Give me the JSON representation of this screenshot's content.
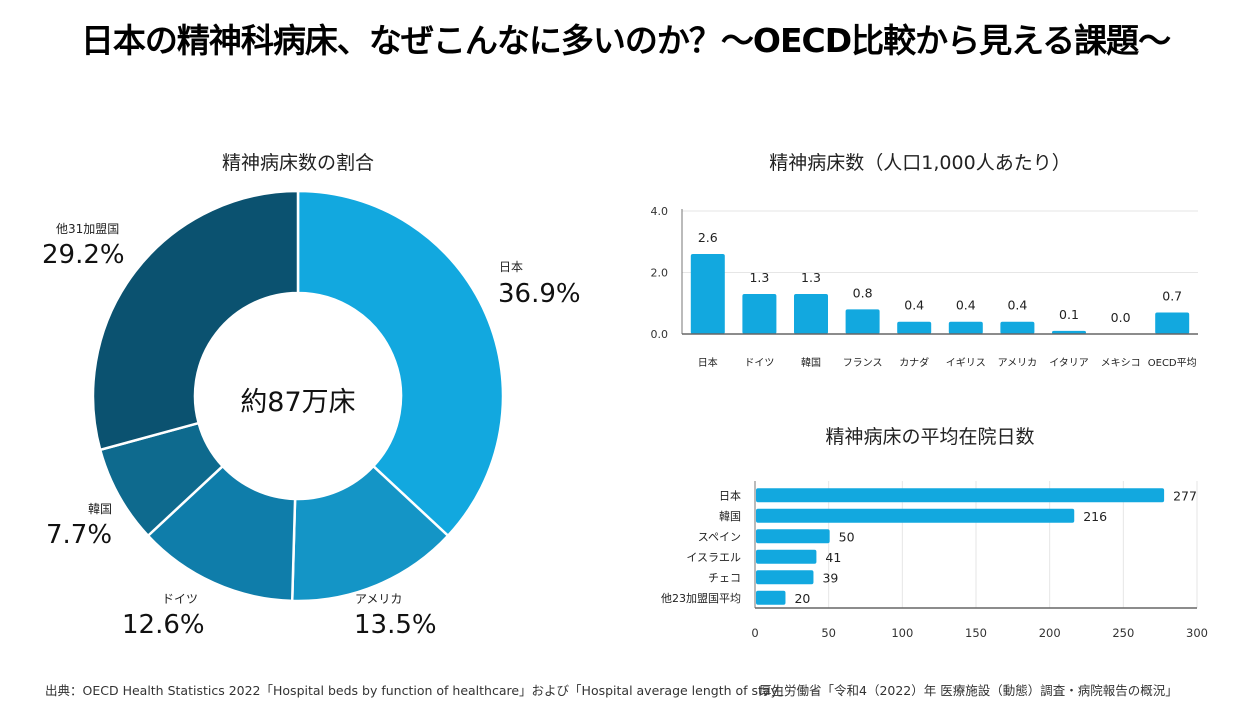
{
  "page": {
    "title": "日本の精神科病床、なぜこんなに多いのか？～OECD比較から見える課題～",
    "source_left": "出典：OECD Health Statistics 2022「Hospital beds by function of healthcare」および「Hospital average length of stay」",
    "source_right": "厚生労働省「令和4（2022）年 医療施設（動態）調査・病院報告の概況」"
  },
  "chart_data": [
    {
      "type": "pie",
      "variant": "donut",
      "title": "精神病床数の割合",
      "center_label": "約87万床",
      "slices": [
        {
          "label": "日本",
          "value": 36.9,
          "display": "36.9%",
          "color": "#12A8DF"
        },
        {
          "label": "アメリカ",
          "value": 13.5,
          "display": "13.5%",
          "color": "#1495C6"
        },
        {
          "label": "ドイツ",
          "value": 12.6,
          "display": "12.6%",
          "color": "#0F7DAA"
        },
        {
          "label": "韓国",
          "value": 7.7,
          "display": "7.7%",
          "color": "#0E6A8E"
        },
        {
          "label": "他31加盟国",
          "value": 29.2,
          "display": "29.2%",
          "color": "#0B5270"
        }
      ]
    },
    {
      "type": "bar",
      "title": "精神病床数（人口1,000人あたり）",
      "categories": [
        "日本",
        "ドイツ",
        "韓国",
        "フランス",
        "カナダ",
        "イギリス",
        "アメリカ",
        "イタリア",
        "メキシコ",
        "OECD平均"
      ],
      "values": [
        2.6,
        1.3,
        1.3,
        0.8,
        0.4,
        0.4,
        0.4,
        0.1,
        0.0,
        0.7
      ],
      "value_labels": [
        "2.6",
        "1.3",
        "1.3",
        "0.8",
        "0.4",
        "0.4",
        "0.4",
        "0.1",
        "0.0",
        "0.7"
      ],
      "xlabel": "",
      "ylabel": "",
      "ylim": [
        0,
        4
      ],
      "yticks": [
        "0.0",
        "2.0",
        "4.0"
      ],
      "ytick_values": [
        0,
        2,
        4
      ],
      "grid": true,
      "color": "#12A8DF"
    },
    {
      "type": "bar",
      "orientation": "horizontal",
      "title": "精神病床の平均在院日数",
      "categories": [
        "日本",
        "韓国",
        "スペイン",
        "イスラエル",
        "チェコ",
        "他23加盟国平均"
      ],
      "values": [
        277,
        216,
        50,
        41,
        39,
        20
      ],
      "value_labels": [
        "277",
        "216",
        "50",
        "41",
        "39",
        "20"
      ],
      "xlim": [
        0,
        300
      ],
      "xticks": [
        "0",
        "50",
        "100",
        "150",
        "200",
        "250",
        "300"
      ],
      "xtick_values": [
        0,
        50,
        100,
        150,
        200,
        250,
        300
      ],
      "grid": true,
      "color": "#12A8DF"
    }
  ]
}
